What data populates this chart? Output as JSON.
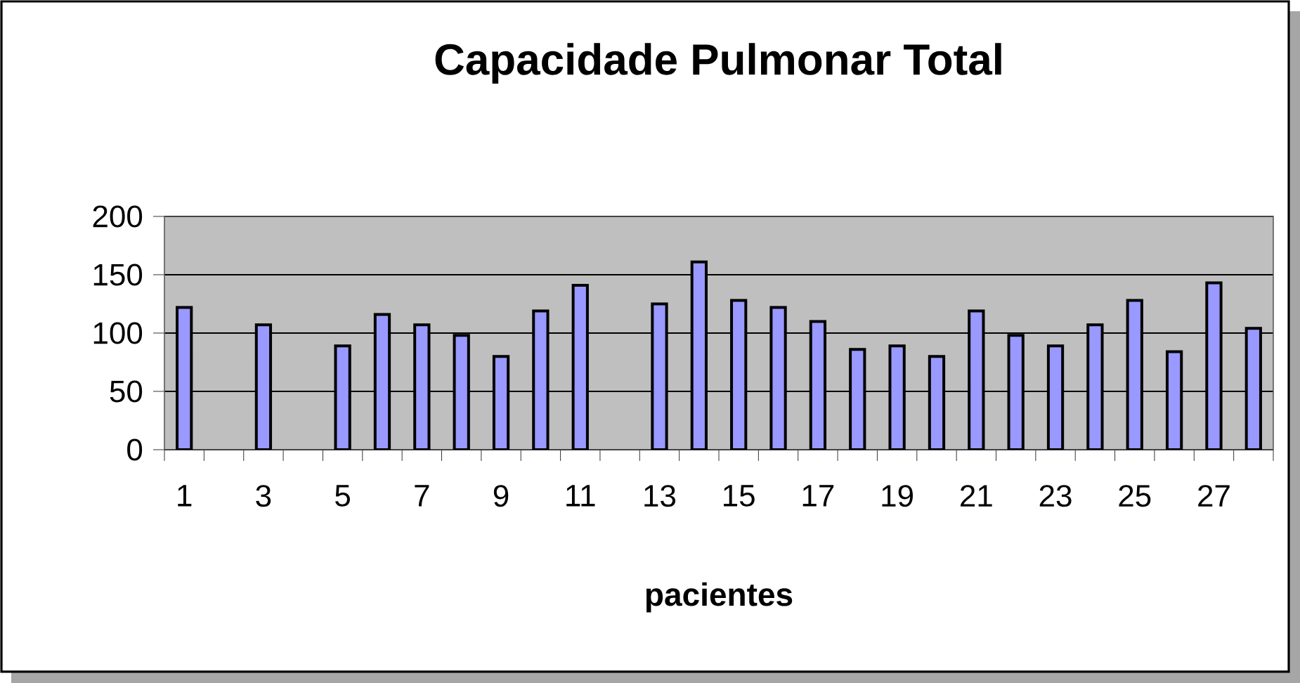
{
  "chart_data": {
    "type": "bar",
    "title": "Capacidade Pulmonar Total",
    "xlabel": "pacientes",
    "categories": [
      "1",
      null,
      "3",
      null,
      "5",
      null,
      "7",
      null,
      "9",
      null,
      "11",
      null,
      "13",
      null,
      "15",
      null,
      "17",
      null,
      "19",
      null,
      "21",
      null,
      "23",
      null,
      "25",
      null,
      "27",
      null
    ],
    "values": [
      122,
      null,
      107,
      null,
      89,
      116,
      107,
      98,
      80,
      119,
      141,
      null,
      125,
      161,
      128,
      122,
      110,
      86,
      89,
      80,
      119,
      98,
      89,
      107,
      128,
      84,
      143,
      104
    ],
    "color": "#9999ff",
    "ylim": [
      0,
      200
    ],
    "yticks": [
      0,
      50,
      100,
      150,
      200
    ],
    "grid": "y"
  }
}
